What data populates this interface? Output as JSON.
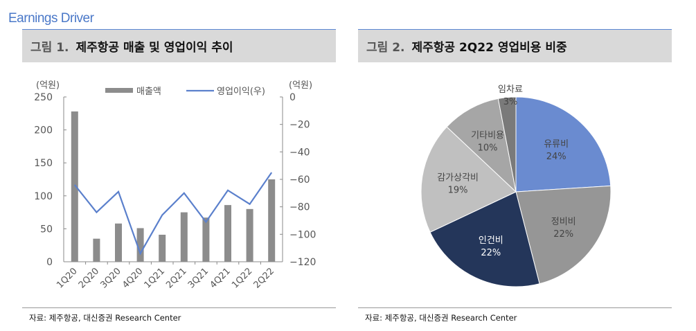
{
  "page_title": "Earnings Driver",
  "figure1": {
    "number": "그림 1.",
    "title": "제주항공 매출 및 영업이익 추이",
    "source": "자료: 제주항공, 대신증권 Research Center"
  },
  "figure2": {
    "number": "그림 2.",
    "title": "제주항공 2Q22 영업비용 비중",
    "source": "자료: 제주항공, 대신증권 Research Center"
  },
  "chart_data": [
    {
      "type": "bar+line",
      "categories": [
        "1Q20",
        "2Q20",
        "3Q20",
        "4Q20",
        "1Q21",
        "2Q21",
        "3Q21",
        "4Q21",
        "1Q22",
        "2Q22"
      ],
      "series": [
        {
          "name": "매출액",
          "type": "bar",
          "axis": "left",
          "color": "#8c8c8c",
          "values": [
            228,
            35,
            58,
            51,
            41,
            75,
            67,
            86,
            80,
            125
          ]
        },
        {
          "name": "영업이익(우)",
          "type": "line",
          "axis": "right",
          "color": "#5b80cc",
          "values": [
            -64,
            -84,
            -69,
            -114,
            -86,
            -70,
            -91,
            -68,
            -78,
            -55
          ]
        }
      ],
      "ylabel_left": "(억원)",
      "ylabel_right": "(억원)",
      "ylim_left": [
        0,
        250
      ],
      "yticks_left": [
        0,
        50,
        100,
        150,
        200,
        250
      ],
      "ylim_right": [
        -120,
        0
      ],
      "yticks_right": [
        0,
        -20,
        -40,
        -60,
        -80,
        -100,
        -120
      ],
      "legend": "top"
    },
    {
      "type": "pie",
      "start": "top",
      "direction": "clockwise",
      "slices": [
        {
          "label": "유류비",
          "value": 24,
          "color": "#6a8bd0",
          "text_color": "#444"
        },
        {
          "label": "정비비",
          "value": 22,
          "color": "#969696",
          "text_color": "#444"
        },
        {
          "label": "인건비",
          "value": 22,
          "color": "#24365a",
          "text_color": "#fff"
        },
        {
          "label": "감가상각비",
          "value": 19,
          "color": "#c0c0c0",
          "text_color": "#444"
        },
        {
          "label": "기타비용",
          "value": 10,
          "color": "#a6a6a6",
          "text_color": "#444"
        },
        {
          "label": "임차료",
          "value": 3,
          "color": "#7a7a7a",
          "text_color": "#444"
        }
      ]
    }
  ]
}
